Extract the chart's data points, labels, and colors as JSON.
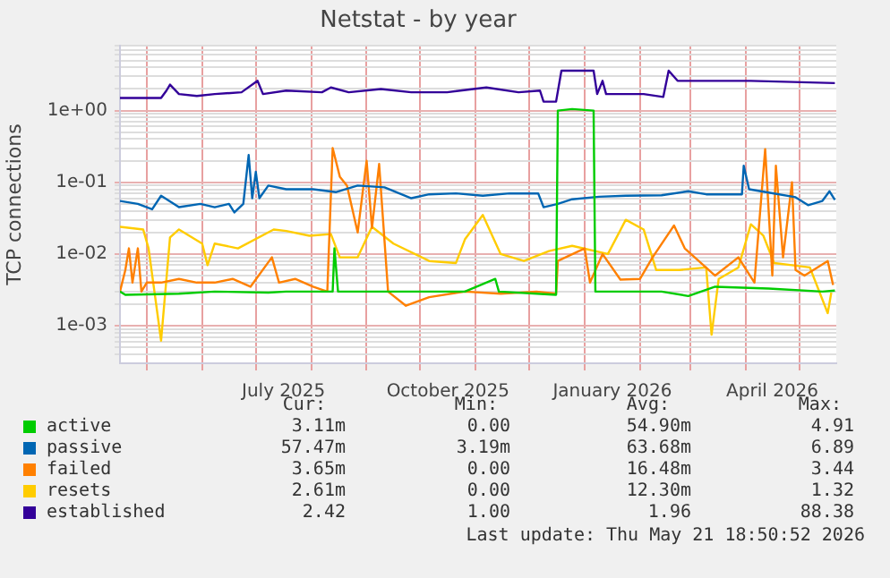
{
  "chart_data": {
    "type": "line",
    "title": "Netstat - by year",
    "ylabel": "TCP connections",
    "log": "y",
    "grid": true,
    "legend": "bottom",
    "marker": "none",
    "line_style": "solid",
    "xlim": [
      "2025-04-16",
      "2026-05-21T18:50"
    ],
    "xticks": [
      {
        "value": "2025-05-01",
        "label": null
      },
      {
        "value": "2025-06-01",
        "label": null
      },
      {
        "value": "2025-07-01",
        "label": null
      },
      {
        "value": "2025-07-16T12:00",
        "label": "July 2025"
      },
      {
        "value": "2025-08-01",
        "label": null
      },
      {
        "value": "2025-09-01",
        "label": null
      },
      {
        "value": "2025-10-01",
        "label": null
      },
      {
        "value": "2025-10-16T12:00",
        "label": "October 2025"
      },
      {
        "value": "2025-11-01",
        "label": null
      },
      {
        "value": "2025-12-01",
        "label": null
      },
      {
        "value": "2026-01-01",
        "label": null
      },
      {
        "value": "2026-01-16T12:00",
        "label": "January 2026"
      },
      {
        "value": "2026-02-01",
        "label": null
      },
      {
        "value": "2026-03-01",
        "label": null
      },
      {
        "value": "2026-04-01",
        "label": null
      },
      {
        "value": "2026-04-16",
        "label": "April 2026"
      },
      {
        "value": "2026-05-01",
        "label": null
      }
    ],
    "ylim": [
      0.00032,
      8
    ],
    "yticks": [
      {
        "value": 0.0004,
        "label": null
      },
      {
        "value": 0.0005,
        "label": null
      },
      {
        "value": 0.0006,
        "label": null
      },
      {
        "value": 0.0007,
        "label": null
      },
      {
        "value": 0.0008,
        "label": null
      },
      {
        "value": 0.0009,
        "label": null
      },
      {
        "value": 0.001,
        "label": "1e-03"
      },
      {
        "value": 0.002,
        "label": null
      },
      {
        "value": 0.003,
        "label": null
      },
      {
        "value": 0.004,
        "label": null
      },
      {
        "value": 0.005,
        "label": null
      },
      {
        "value": 0.006,
        "label": null
      },
      {
        "value": 0.007,
        "label": null
      },
      {
        "value": 0.008,
        "label": null
      },
      {
        "value": 0.009,
        "label": null
      },
      {
        "value": 0.01,
        "label": "1e-02"
      },
      {
        "value": 0.02,
        "label": null
      },
      {
        "value": 0.03,
        "label": null
      },
      {
        "value": 0.04,
        "label": null
      },
      {
        "value": 0.05,
        "label": null
      },
      {
        "value": 0.06,
        "label": null
      },
      {
        "value": 0.07,
        "label": null
      },
      {
        "value": 0.08,
        "label": null
      },
      {
        "value": 0.09,
        "label": null
      },
      {
        "value": 0.1,
        "label": "1e-01"
      },
      {
        "value": 0.2,
        "label": null
      },
      {
        "value": 0.3,
        "label": null
      },
      {
        "value": 0.4,
        "label": null
      },
      {
        "value": 0.5,
        "label": null
      },
      {
        "value": 0.6,
        "label": null
      },
      {
        "value": 0.7,
        "label": null
      },
      {
        "value": 0.8,
        "label": null
      },
      {
        "value": 0.9,
        "label": null
      },
      {
        "value": 1,
        "label": "1e+00"
      },
      {
        "value": 2,
        "label": null
      },
      {
        "value": 3,
        "label": null
      },
      {
        "value": 4,
        "label": null
      },
      {
        "value": 5,
        "label": null
      },
      {
        "value": 6,
        "label": null
      },
      {
        "value": 7,
        "label": null
      },
      {
        "value": 8,
        "label": null
      }
    ],
    "series": [
      {
        "name": "active",
        "color": "#00cc00",
        "x": [
          "2025-04-16",
          "2025-04-19",
          "2025-05-19",
          "2025-06-08",
          "2025-07-08",
          "2025-07-18",
          "2025-08-13",
          "2025-08-14",
          "2025-08-16",
          "2025-09-16",
          "2025-10-26",
          "2025-11-12",
          "2025-11-14",
          "2025-12-16",
          "2025-12-17",
          "2025-12-25",
          "2026-01-06",
          "2026-01-07",
          "2026-02-13",
          "2026-02-28",
          "2026-03-15",
          "2026-04-14",
          "2026-05-14",
          "2026-05-21"
        ],
        "values": [
          0.003,
          0.0027,
          0.0028,
          0.003,
          0.0029,
          0.003,
          0.003,
          0.012,
          0.003,
          0.003,
          0.003,
          0.0045,
          0.003,
          0.0027,
          1.0,
          1.05,
          1.0,
          0.003,
          0.003,
          0.0026,
          0.0035,
          0.0033,
          0.003,
          0.0031
        ]
      },
      {
        "name": "passive",
        "color": "#0066b3",
        "x": [
          "2025-04-16",
          "2025-04-26",
          "2025-05-04",
          "2025-05-09",
          "2025-05-19",
          "2025-05-31",
          "2025-06-08",
          "2025-06-16",
          "2025-06-19",
          "2025-06-24",
          "2025-06-27",
          "2025-06-29",
          "2025-07-01",
          "2025-07-03",
          "2025-07-08",
          "2025-07-18",
          "2025-08-02",
          "2025-08-15",
          "2025-08-27",
          "2025-09-11",
          "2025-09-26",
          "2025-10-06",
          "2025-10-21",
          "2025-11-05",
          "2025-11-20",
          "2025-12-06",
          "2025-12-09",
          "2025-12-17",
          "2025-12-25",
          "2026-01-09",
          "2026-01-24",
          "2026-02-13",
          "2026-02-28",
          "2026-03-10",
          "2026-03-30",
          "2026-03-31",
          "2026-04-03",
          "2026-04-14",
          "2026-04-29",
          "2026-05-06",
          "2026-05-14",
          "2026-05-18",
          "2026-05-21"
        ],
        "values": [
          0.055,
          0.05,
          0.042,
          0.065,
          0.045,
          0.05,
          0.045,
          0.05,
          0.038,
          0.05,
          0.24,
          0.06,
          0.14,
          0.06,
          0.09,
          0.08,
          0.08,
          0.073,
          0.09,
          0.085,
          0.06,
          0.068,
          0.07,
          0.065,
          0.07,
          0.07,
          0.045,
          0.05,
          0.058,
          0.063,
          0.065,
          0.066,
          0.075,
          0.068,
          0.068,
          0.17,
          0.08,
          0.072,
          0.062,
          0.048,
          0.055,
          0.075,
          0.057
        ]
      },
      {
        "name": "failed",
        "color": "#ff8000",
        "x": [
          "2025-04-16",
          "2025-04-19",
          "2025-04-21",
          "2025-04-23",
          "2025-04-26",
          "2025-04-28",
          "2025-05-01",
          "2025-05-09",
          "2025-05-19",
          "2025-05-29",
          "2025-06-08",
          "2025-06-18",
          "2025-06-28",
          "2025-07-10",
          "2025-07-14",
          "2025-07-23",
          "2025-08-02",
          "2025-08-10",
          "2025-08-13",
          "2025-08-17",
          "2025-08-21",
          "2025-08-27",
          "2025-09-01",
          "2025-09-04",
          "2025-09-08",
          "2025-09-13",
          "2025-09-23",
          "2025-10-06",
          "2025-10-26",
          "2025-11-15",
          "2025-12-05",
          "2025-12-16",
          "2025-12-17",
          "2026-01-01",
          "2026-01-04",
          "2026-01-11",
          "2026-01-21",
          "2026-02-01",
          "2026-02-08",
          "2026-02-20",
          "2026-02-26",
          "2026-03-15",
          "2026-03-28",
          "2026-04-06",
          "2026-04-12",
          "2026-04-16",
          "2026-04-18",
          "2026-04-22",
          "2026-04-27",
          "2026-04-29",
          "2026-05-04",
          "2026-05-17",
          "2026-05-20"
        ],
        "values": [
          0.003,
          0.006,
          0.012,
          0.004,
          0.012,
          0.003,
          0.004,
          0.004,
          0.0045,
          0.004,
          0.004,
          0.0045,
          0.0035,
          0.009,
          0.004,
          0.0045,
          0.0035,
          0.003,
          0.3,
          0.12,
          0.09,
          0.02,
          0.2,
          0.023,
          0.18,
          0.003,
          0.0019,
          0.0025,
          0.003,
          0.0028,
          0.003,
          0.0028,
          0.008,
          0.012,
          0.004,
          0.01,
          0.0044,
          0.0045,
          0.009,
          0.025,
          0.012,
          0.005,
          0.009,
          0.004,
          0.29,
          0.005,
          0.17,
          0.009,
          0.1,
          0.006,
          0.005,
          0.008,
          0.0037
        ]
      },
      {
        "name": "resets",
        "color": "#ffcc00",
        "x": [
          "2025-04-16",
          "2025-04-29",
          "2025-05-02",
          "2025-05-09",
          "2025-05-14",
          "2025-05-19",
          "2025-06-01",
          "2025-06-04",
          "2025-06-08",
          "2025-06-21",
          "2025-07-11",
          "2025-07-18",
          "2025-07-31",
          "2025-08-12",
          "2025-08-17",
          "2025-08-27",
          "2025-09-04",
          "2025-09-16",
          "2025-10-06",
          "2025-10-21",
          "2025-10-26",
          "2025-11-05",
          "2025-11-15",
          "2025-11-28",
          "2025-12-12",
          "2025-12-25",
          "2026-01-14",
          "2026-01-24",
          "2026-02-03",
          "2026-02-10",
          "2026-02-23",
          "2026-03-10",
          "2026-03-13",
          "2026-03-17",
          "2026-03-28",
          "2026-04-04",
          "2026-04-11",
          "2026-04-17",
          "2026-04-27",
          "2026-05-07",
          "2026-05-17",
          "2026-05-19"
        ],
        "values": [
          0.024,
          0.022,
          0.012,
          0.00062,
          0.017,
          0.022,
          0.014,
          0.007,
          0.014,
          0.012,
          0.022,
          0.021,
          0.018,
          0.019,
          0.009,
          0.009,
          0.024,
          0.014,
          0.008,
          0.0075,
          0.016,
          0.035,
          0.01,
          0.008,
          0.011,
          0.013,
          0.01,
          0.03,
          0.022,
          0.006,
          0.006,
          0.0065,
          0.00075,
          0.0045,
          0.0065,
          0.026,
          0.018,
          0.0075,
          0.007,
          0.0065,
          0.0015,
          0.0029
        ]
      },
      {
        "name": "established",
        "color": "#330099",
        "x": [
          "2025-04-16",
          "2025-05-09",
          "2025-05-12",
          "2025-05-14",
          "2025-05-19",
          "2025-05-29",
          "2025-06-08",
          "2025-06-23",
          "2025-07-02",
          "2025-07-05",
          "2025-07-18",
          "2025-08-07",
          "2025-08-12",
          "2025-08-22",
          "2025-09-09",
          "2025-09-26",
          "2025-10-16",
          "2025-11-07",
          "2025-11-25",
          "2025-12-07",
          "2025-12-09",
          "2025-12-16",
          "2025-12-19",
          "2026-01-06",
          "2026-01-08",
          "2026-01-11",
          "2026-01-13",
          "2026-02-03",
          "2026-02-14",
          "2026-02-17",
          "2026-02-22",
          "2026-04-04",
          "2026-05-21"
        ],
        "values": [
          1.5,
          1.5,
          1.9,
          2.3,
          1.7,
          1.6,
          1.7,
          1.8,
          2.6,
          1.7,
          1.9,
          1.8,
          2.1,
          1.8,
          2.0,
          1.8,
          1.8,
          2.1,
          1.8,
          1.9,
          1.33,
          1.33,
          3.6,
          3.6,
          1.7,
          2.6,
          1.7,
          1.7,
          1.55,
          3.6,
          2.6,
          2.6,
          2.42
        ]
      }
    ],
    "annotations": [
      "Cur:",
      "Min:",
      "Avg:",
      "Max:",
      "3.11m",
      "0.00",
      "54.90m",
      "4.91",
      "57.47m",
      "3.19m",
      "63.68m",
      "6.89",
      "3.65m",
      "0.00",
      "16.48m",
      "3.44",
      "2.61m",
      "0.00",
      "12.30m",
      "1.32",
      "2.42",
      "1.00",
      "1.96",
      "88.38",
      "Last update: Thu May 21 18:50:52 2026"
    ]
  }
}
